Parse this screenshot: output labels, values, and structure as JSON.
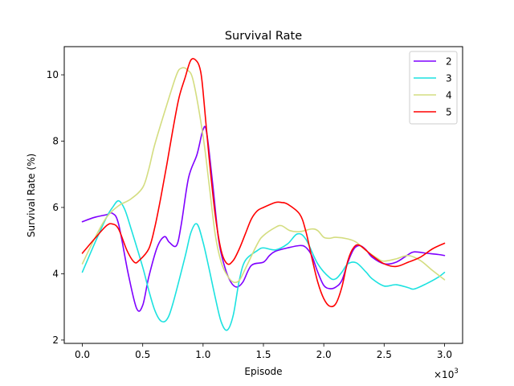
{
  "chart_data": {
    "type": "line",
    "title": "Survival Rate",
    "xlabel": "Episode",
    "ylabel": "Survival Rate (%)",
    "x_scale_label": "×10",
    "x_scale_exp": "3",
    "xlim": [
      -0.15,
      3.15
    ],
    "ylim": [
      1.9,
      10.85
    ],
    "xticks": [
      0.0,
      0.5,
      1.0,
      1.5,
      2.0,
      2.5,
      3.0
    ],
    "xtick_labels": [
      "0.0",
      "0.5",
      "1.0",
      "1.5",
      "2.0",
      "2.5",
      "3.0"
    ],
    "yticks": [
      2,
      4,
      6,
      8,
      10
    ],
    "ytick_labels": [
      "2",
      "4",
      "6",
      "8",
      "10"
    ],
    "legend_position": "top-right",
    "series": [
      {
        "name": "2",
        "color": "#7f00ff",
        "x": [
          0.0,
          0.1,
          0.2,
          0.25,
          0.3,
          0.38,
          0.45,
          0.5,
          0.55,
          0.62,
          0.68,
          0.72,
          0.78,
          0.82,
          0.88,
          0.95,
          1.0,
          1.03,
          1.08,
          1.13,
          1.18,
          1.23,
          1.28,
          1.33,
          1.4,
          1.5,
          1.55,
          1.6,
          1.7,
          1.8,
          1.85,
          1.9,
          1.95,
          2.0,
          2.05,
          2.1,
          2.15,
          2.2,
          2.25,
          2.3,
          2.35,
          2.4,
          2.5,
          2.6,
          2.7,
          2.75,
          2.85,
          2.95,
          3.0
        ],
        "y": [
          5.57,
          5.7,
          5.78,
          5.82,
          5.5,
          4.0,
          2.95,
          3.05,
          3.9,
          4.8,
          5.12,
          4.95,
          4.85,
          5.5,
          6.9,
          7.6,
          8.35,
          8.25,
          6.7,
          5.0,
          4.2,
          3.75,
          3.6,
          3.75,
          4.25,
          4.35,
          4.55,
          4.68,
          4.78,
          4.85,
          4.8,
          4.55,
          4.05,
          3.65,
          3.55,
          3.6,
          3.8,
          4.35,
          4.75,
          4.85,
          4.72,
          4.5,
          4.3,
          4.35,
          4.58,
          4.66,
          4.62,
          4.58,
          4.55
        ]
      },
      {
        "name": "3",
        "color": "#1ce2e0",
        "x": [
          0.0,
          0.1,
          0.2,
          0.25,
          0.3,
          0.35,
          0.4,
          0.5,
          0.55,
          0.6,
          0.65,
          0.7,
          0.75,
          0.85,
          0.9,
          0.95,
          1.0,
          1.05,
          1.1,
          1.15,
          1.2,
          1.25,
          1.3,
          1.35,
          1.45,
          1.5,
          1.6,
          1.7,
          1.78,
          1.85,
          1.95,
          2.05,
          2.1,
          2.15,
          2.2,
          2.27,
          2.35,
          2.4,
          2.5,
          2.6,
          2.7,
          2.75,
          2.85,
          2.95,
          3.0
        ],
        "y": [
          4.05,
          4.9,
          5.7,
          6.0,
          6.2,
          5.95,
          5.4,
          4.2,
          3.5,
          2.9,
          2.58,
          2.62,
          3.1,
          4.5,
          5.25,
          5.5,
          4.95,
          4.15,
          3.3,
          2.55,
          2.3,
          2.75,
          3.8,
          4.4,
          4.7,
          4.78,
          4.72,
          4.9,
          5.2,
          5.05,
          4.3,
          3.88,
          3.85,
          4.05,
          4.3,
          4.33,
          4.05,
          3.85,
          3.63,
          3.67,
          3.58,
          3.54,
          3.7,
          3.9,
          4.04
        ]
      },
      {
        "name": "4",
        "color": "#d4dd80",
        "x": [
          0.0,
          0.1,
          0.2,
          0.3,
          0.4,
          0.5,
          0.55,
          0.6,
          0.7,
          0.78,
          0.82,
          0.87,
          0.92,
          1.0,
          1.05,
          1.1,
          1.15,
          1.2,
          1.25,
          1.3,
          1.35,
          1.45,
          1.5,
          1.6,
          1.65,
          1.72,
          1.8,
          1.9,
          1.95,
          2.0,
          2.05,
          2.1,
          2.2,
          2.27,
          2.35,
          2.45,
          2.5,
          2.6,
          2.7,
          2.8,
          2.9,
          3.0
        ],
        "y": [
          4.3,
          5.05,
          5.7,
          6.05,
          6.25,
          6.6,
          7.15,
          7.9,
          9.1,
          10.0,
          10.2,
          10.15,
          9.8,
          8.15,
          6.7,
          5.2,
          4.35,
          3.95,
          3.75,
          3.8,
          4.15,
          4.9,
          5.15,
          5.4,
          5.45,
          5.3,
          5.27,
          5.35,
          5.3,
          5.1,
          5.07,
          5.1,
          5.05,
          4.95,
          4.7,
          4.45,
          4.38,
          4.45,
          4.55,
          4.4,
          4.1,
          3.82
        ]
      },
      {
        "name": "5",
        "color": "#ff0000",
        "x": [
          0.0,
          0.1,
          0.2,
          0.25,
          0.3,
          0.37,
          0.43,
          0.47,
          0.55,
          0.6,
          0.65,
          0.7,
          0.75,
          0.8,
          0.85,
          0.9,
          0.95,
          0.98,
          1.0,
          1.05,
          1.1,
          1.15,
          1.2,
          1.25,
          1.3,
          1.35,
          1.4,
          1.45,
          1.5,
          1.6,
          1.65,
          1.7,
          1.8,
          1.85,
          1.9,
          1.95,
          2.0,
          2.05,
          2.1,
          2.15,
          2.2,
          2.25,
          2.3,
          2.4,
          2.5,
          2.6,
          2.7,
          2.8,
          2.9,
          3.0
        ],
        "y": [
          4.62,
          5.05,
          5.45,
          5.5,
          5.35,
          4.7,
          4.35,
          4.4,
          4.75,
          5.4,
          6.3,
          7.3,
          8.35,
          9.3,
          9.9,
          10.45,
          10.4,
          10.1,
          9.5,
          7.5,
          5.8,
          4.7,
          4.3,
          4.4,
          4.75,
          5.2,
          5.65,
          5.9,
          6.0,
          6.15,
          6.15,
          6.1,
          5.8,
          5.3,
          4.5,
          3.75,
          3.25,
          3.02,
          3.1,
          3.6,
          4.4,
          4.8,
          4.85,
          4.55,
          4.3,
          4.22,
          4.35,
          4.5,
          4.75,
          4.92
        ]
      }
    ]
  }
}
